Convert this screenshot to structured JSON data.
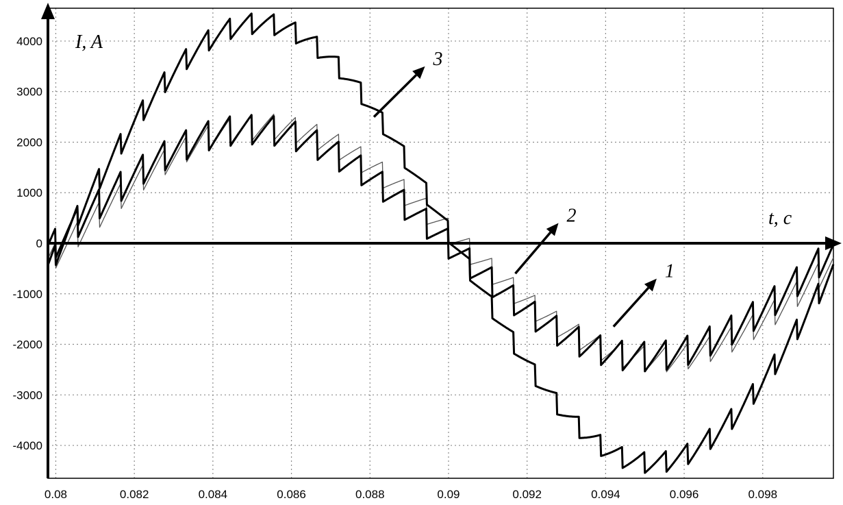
{
  "chart_data": {
    "type": "line",
    "title": "",
    "xlabel": "t, c",
    "ylabel": "I, A",
    "xlim": [
      0.0798,
      0.0998
    ],
    "ylim": [
      -4650,
      4650
    ],
    "x_ticks": [
      0.08,
      0.082,
      0.084,
      0.086,
      0.088,
      0.09,
      0.092,
      0.094,
      0.096,
      0.098
    ],
    "x_tick_labels": [
      "0.08",
      "0.082",
      "0.084",
      "0.086",
      "0.088",
      "0.09",
      "0.092",
      "0.094",
      "0.096",
      "0.098"
    ],
    "y_ticks": [
      -4000,
      -3000,
      -2000,
      -1000,
      0,
      1000,
      2000,
      3000,
      4000
    ],
    "y_tick_labels": [
      "-4000",
      "-3000",
      "-2000",
      "-1000",
      "0",
      "1000",
      "2000",
      "3000",
      "4000"
    ],
    "grid": true,
    "series": [
      {
        "label": "1",
        "style": "thin",
        "color": "#555555",
        "amplitude": 2300,
        "phase_shift": 0.00032,
        "ripple": 260,
        "ripple_period": 0.000555
      },
      {
        "label": "2",
        "style": "bold",
        "color": "#000000",
        "amplitude": 2250,
        "phase_shift": -2e-05,
        "ripple": 300,
        "ripple_period": 0.000555
      },
      {
        "label": "3",
        "style": "bold",
        "color": "#000000",
        "amplitude": 4350,
        "phase_shift": 0.00016,
        "ripple": 210,
        "ripple_period": 0.000555
      }
    ],
    "period": 0.02,
    "zero_crossing": 0.08,
    "annotations": [
      {
        "text": "1",
        "arrow_from": [
          0.0942,
          -1650
        ],
        "arrow_to": [
          0.0953,
          -700
        ]
      },
      {
        "text": "2",
        "arrow_from": [
          0.0917,
          -600
        ],
        "arrow_to": [
          0.0928,
          400
        ]
      },
      {
        "text": "3",
        "arrow_from": [
          0.0881,
          2500
        ],
        "arrow_to": [
          0.0894,
          3500
        ]
      }
    ]
  }
}
